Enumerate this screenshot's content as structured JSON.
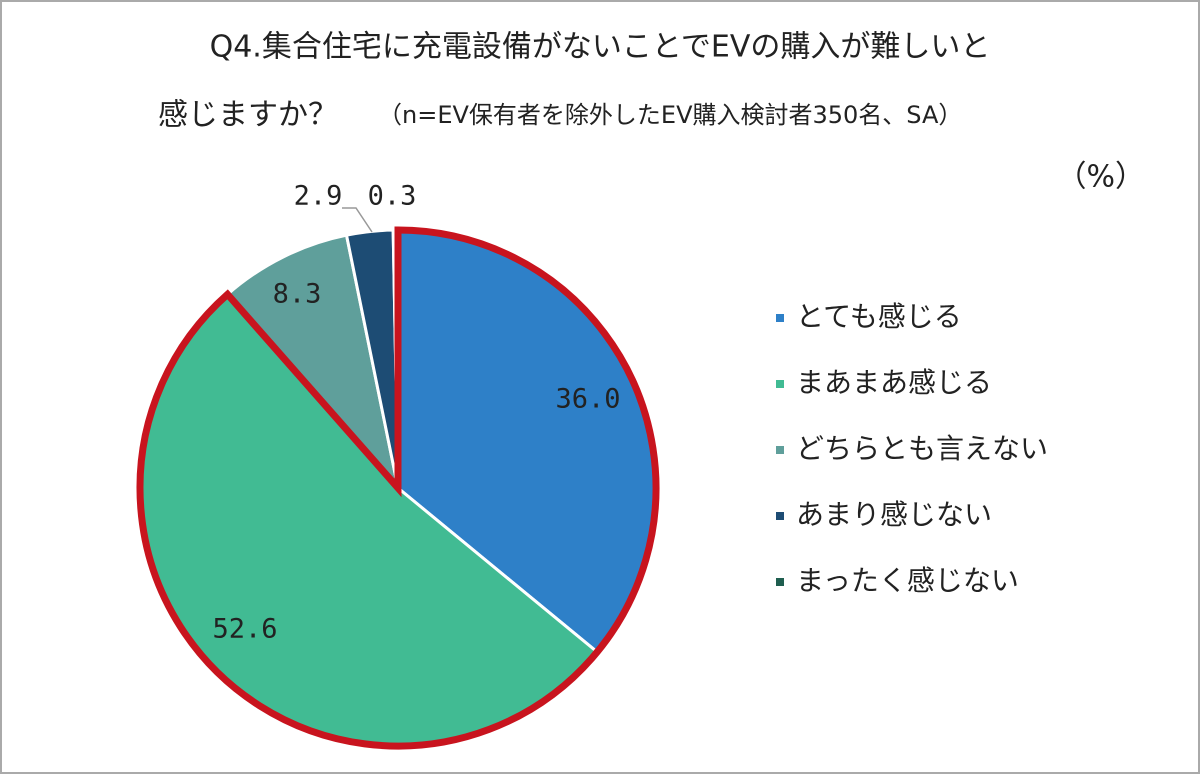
{
  "chart_data": {
    "type": "pie",
    "title": "Q4.集合住宅に充電設備がないことでEVの購入が難しいと",
    "subtitle": "感じますか？",
    "note": "（n=EV保有者を除外したEV購入検討者350名、SA）",
    "unit_label": "（%）",
    "categories": [
      "とても感じる",
      "まあまあ感じる",
      "どちらとも言えない",
      "あまり感じない",
      "まったく感じない"
    ],
    "values": [
      36.0,
      52.6,
      8.3,
      2.9,
      0.3
    ],
    "value_labels": [
      "36.0",
      "52.6",
      "8.3",
      "2.9",
      "0.3"
    ],
    "colors": [
      "#2e80c8",
      "#41bb93",
      "#5f9f9b",
      "#1d4c74",
      "#1f5e4f"
    ],
    "legend": "right"
  }
}
